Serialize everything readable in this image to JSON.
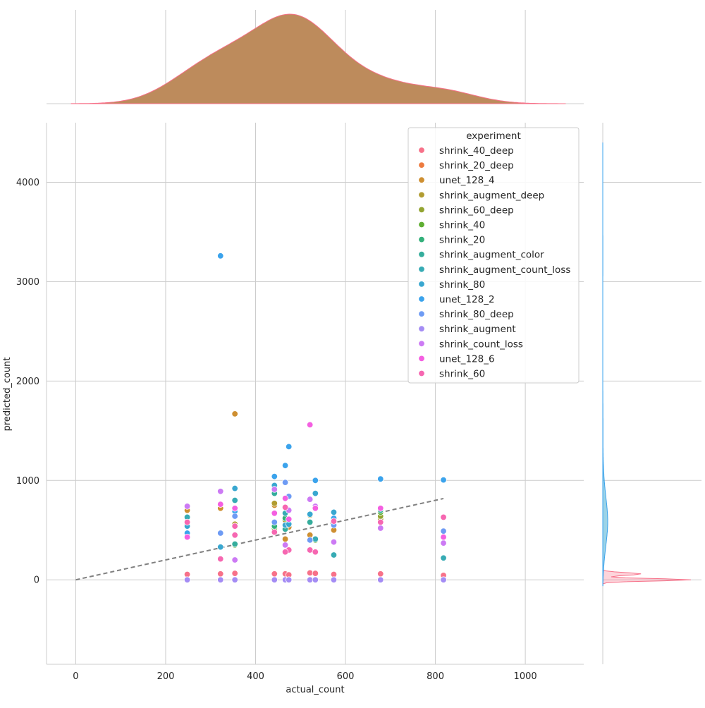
{
  "chart_data": {
    "type": "scatter",
    "xlabel": "actual_count",
    "ylabel": "predicted_count",
    "xlim": [
      -65,
      1130
    ],
    "ylim": [
      -850,
      4600
    ],
    "x_ticks": [
      0,
      200,
      400,
      600,
      800,
      1000
    ],
    "y_ticks": [
      0,
      1000,
      2000,
      3000,
      4000
    ],
    "grid": true,
    "legend": {
      "title": "experiment",
      "placement": "top-right"
    },
    "reference_line": {
      "style": "dashed",
      "color": "#808080",
      "x": [
        0,
        818
      ],
      "y": [
        0,
        818
      ]
    },
    "marginal_x": {
      "type": "kde",
      "color": "#bd8b5c",
      "peak_x": 460
    },
    "marginal_y": {
      "type": "kde",
      "peak_y": 55
    },
    "series": [
      {
        "name": "shrink_40_deep",
        "color": "#f77189",
        "points": [
          [
            248,
            55
          ],
          [
            322,
            60
          ],
          [
            354,
            65
          ],
          [
            442,
            60
          ],
          [
            466,
            60
          ],
          [
            474,
            50
          ],
          [
            521,
            70
          ],
          [
            533,
            65
          ],
          [
            574,
            55
          ],
          [
            678,
            60
          ],
          [
            818,
            45
          ]
        ]
      },
      {
        "name": "shrink_20_deep",
        "color": "#ed7b3f",
        "points": [
          [
            248,
            0
          ],
          [
            322,
            0
          ],
          [
            354,
            0
          ],
          [
            442,
            0
          ],
          [
            466,
            0
          ],
          [
            474,
            0
          ],
          [
            521,
            0
          ],
          [
            533,
            0
          ],
          [
            574,
            0
          ],
          [
            678,
            0
          ],
          [
            818,
            0
          ]
        ]
      },
      {
        "name": "unet_128_4",
        "color": "#ce8f31",
        "points": [
          [
            248,
            700
          ],
          [
            322,
            720
          ],
          [
            354,
            1670
          ],
          [
            442,
            750
          ],
          [
            466,
            410
          ],
          [
            474,
            530
          ],
          [
            521,
            450
          ],
          [
            574,
            500
          ]
        ]
      },
      {
        "name": "shrink_augment_deep",
        "color": "#b19c31",
        "points": [
          [
            248,
            580
          ],
          [
            354,
            560
          ],
          [
            442,
            770
          ],
          [
            466,
            600
          ],
          [
            521,
            650
          ],
          [
            678,
            610
          ]
        ]
      },
      {
        "name": "shrink_60_deep",
        "color": "#93a431",
        "points": [
          [
            322,
            330
          ],
          [
            442,
            500
          ],
          [
            466,
            520
          ],
          [
            678,
            640
          ]
        ]
      },
      {
        "name": "shrink_40",
        "color": "#5fae32",
        "points": [
          [
            354,
            350
          ],
          [
            442,
            520
          ],
          [
            533,
            400
          ],
          [
            678,
            680
          ]
        ]
      },
      {
        "name": "shrink_20",
        "color": "#33b07a",
        "points": [
          [
            248,
            560
          ],
          [
            442,
            540
          ],
          [
            466,
            620
          ],
          [
            574,
            600
          ]
        ]
      },
      {
        "name": "shrink_augment_color",
        "color": "#35ad9c",
        "points": [
          [
            354,
            360
          ],
          [
            442,
            870
          ],
          [
            466,
            510
          ],
          [
            521,
            580
          ],
          [
            678,
            700
          ]
        ]
      },
      {
        "name": "shrink_augment_count_loss",
        "color": "#37abb4",
        "points": [
          [
            248,
            630
          ],
          [
            354,
            800
          ],
          [
            466,
            670
          ],
          [
            533,
            410
          ],
          [
            574,
            250
          ],
          [
            818,
            220
          ]
        ]
      },
      {
        "name": "shrink_80",
        "color": "#39a7d0",
        "points": [
          [
            248,
            540
          ],
          [
            322,
            330
          ],
          [
            354,
            920
          ],
          [
            442,
            950
          ],
          [
            466,
            550
          ],
          [
            474,
            560
          ],
          [
            521,
            660
          ],
          [
            533,
            870
          ],
          [
            574,
            680
          ],
          [
            678,
            720
          ]
        ]
      },
      {
        "name": "unet_128_2",
        "color": "#3ba3ec",
        "points": [
          [
            248,
            470
          ],
          [
            322,
            3260
          ],
          [
            354,
            690
          ],
          [
            442,
            1040
          ],
          [
            466,
            1150
          ],
          [
            474,
            1340
          ],
          [
            533,
            1000
          ],
          [
            574,
            620
          ],
          [
            678,
            1015
          ],
          [
            818,
            1005
          ]
        ]
      },
      {
        "name": "shrink_80_deep",
        "color": "#6e9bf4",
        "points": [
          [
            322,
            470
          ],
          [
            354,
            640
          ],
          [
            442,
            580
          ],
          [
            466,
            980
          ],
          [
            474,
            840
          ],
          [
            521,
            400
          ],
          [
            574,
            550
          ],
          [
            818,
            490
          ]
        ]
      },
      {
        "name": "shrink_augment",
        "color": "#a48cf4",
        "points": [
          [
            248,
            0
          ],
          [
            322,
            0
          ],
          [
            354,
            0
          ],
          [
            442,
            0
          ],
          [
            466,
            0
          ],
          [
            474,
            0
          ],
          [
            521,
            0
          ],
          [
            533,
            0
          ],
          [
            574,
            0
          ],
          [
            678,
            0
          ],
          [
            818,
            0
          ]
        ]
      },
      {
        "name": "shrink_count_loss",
        "color": "#cc7af4",
        "points": [
          [
            248,
            740
          ],
          [
            322,
            890
          ],
          [
            354,
            200
          ],
          [
            442,
            910
          ],
          [
            466,
            350
          ],
          [
            474,
            700
          ],
          [
            521,
            810
          ],
          [
            533,
            740
          ],
          [
            574,
            380
          ],
          [
            678,
            520
          ],
          [
            818,
            370
          ]
        ]
      },
      {
        "name": "unet_128_6",
        "color": "#f45fe1",
        "points": [
          [
            248,
            430
          ],
          [
            322,
            760
          ],
          [
            354,
            720
          ],
          [
            442,
            670
          ],
          [
            466,
            820
          ],
          [
            474,
            610
          ],
          [
            521,
            1560
          ],
          [
            533,
            720
          ],
          [
            678,
            720
          ],
          [
            818,
            430
          ]
        ]
      },
      {
        "name": "shrink_60",
        "color": "#f667b1",
        "points": [
          [
            248,
            580
          ],
          [
            322,
            210
          ],
          [
            354,
            540
          ],
          [
            442,
            480
          ],
          [
            466,
            730
          ],
          [
            474,
            300
          ],
          [
            521,
            300
          ],
          [
            533,
            280
          ],
          [
            574,
            590
          ],
          [
            678,
            580
          ],
          [
            818,
            630
          ],
          [
            354,
            450
          ],
          [
            466,
            280
          ]
        ]
      }
    ]
  }
}
